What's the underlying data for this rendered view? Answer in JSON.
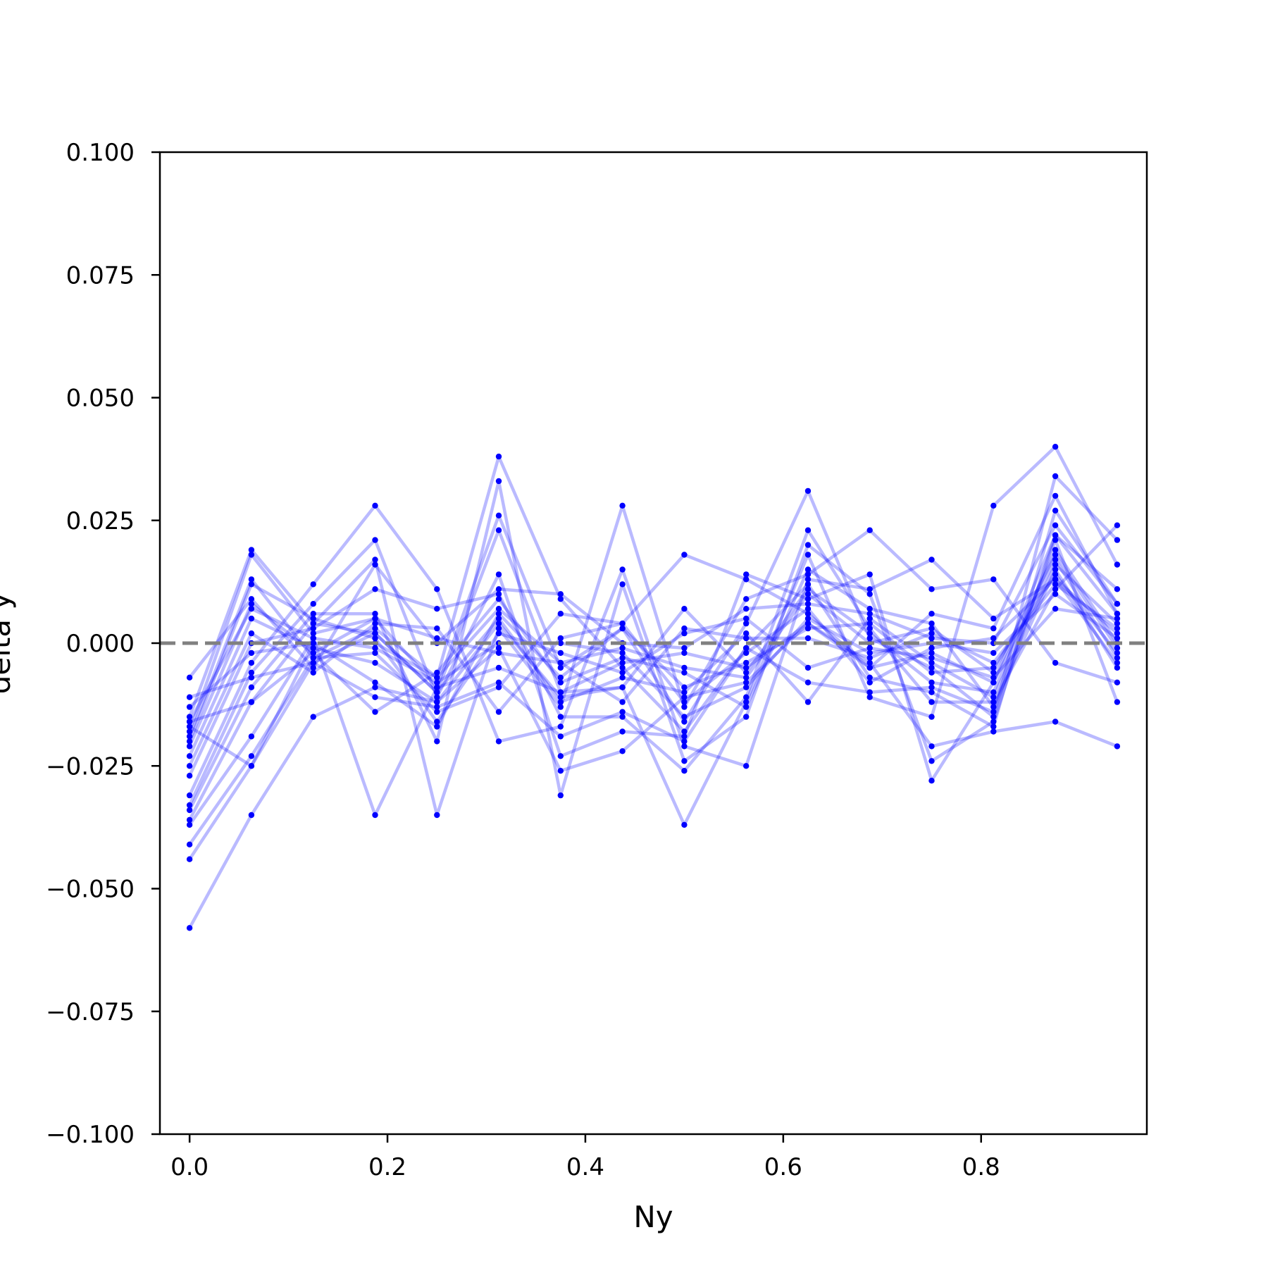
{
  "chart_data": {
    "type": "line",
    "title": "",
    "xlabel": "Ny",
    "ylabel": "delta y",
    "xlim": [
      -0.03,
      0.9675
    ],
    "ylim": [
      -0.1,
      0.1
    ],
    "xticks": [
      0.0,
      0.2,
      0.4,
      0.6,
      0.8
    ],
    "xtick_labels": [
      "0.0",
      "0.2",
      "0.4",
      "0.6",
      "0.8"
    ],
    "yticks": [
      -0.1,
      -0.075,
      -0.05,
      -0.025,
      0.0,
      0.025,
      0.05,
      0.075,
      0.1
    ],
    "ytick_labels": [
      "−0.100",
      "−0.075",
      "−0.050",
      "−0.025",
      "0.000",
      "0.025",
      "0.050",
      "0.075",
      "0.100"
    ],
    "reference_line": {
      "y": 0.0,
      "style": "dashed",
      "color": "#808080"
    },
    "series_color": "#0000ff",
    "grid": false,
    "legend": "none",
    "x": [
      0.0,
      0.0625,
      0.125,
      0.1875,
      0.25,
      0.3125,
      0.375,
      0.4375,
      0.5,
      0.5625,
      0.625,
      0.6875,
      0.75,
      0.8125,
      0.875,
      0.9375
    ],
    "series": [
      {
        "values": [
          -0.058,
          -0.035,
          -0.015,
          -0.009,
          -0.012,
          -0.001,
          -0.026,
          -0.022,
          -0.011,
          -0.008,
          0.004,
          -0.004,
          -0.021,
          -0.018,
          -0.016,
          -0.021
        ]
      },
      {
        "values": [
          -0.044,
          -0.025,
          -0.004,
          0.002,
          -0.01,
          0.023,
          -0.01,
          -0.009,
          -0.037,
          -0.012,
          0.018,
          -0.011,
          -0.015,
          0.028,
          0.04,
          0.016
        ]
      },
      {
        "values": [
          -0.041,
          -0.023,
          -0.003,
          0.003,
          -0.007,
          0.038,
          0.009,
          -0.005,
          -0.018,
          -0.001,
          0.012,
          -0.007,
          -0.01,
          -0.017,
          0.027,
          0.008
        ]
      },
      {
        "values": [
          -0.037,
          -0.019,
          0.001,
          -0.035,
          -0.009,
          0.026,
          -0.005,
          0.003,
          -0.016,
          0.004,
          0.031,
          0.001,
          -0.005,
          -0.015,
          0.034,
          0.021
        ]
      },
      {
        "values": [
          -0.036,
          -0.012,
          0.004,
          0.017,
          -0.035,
          0.003,
          -0.013,
          0.028,
          -0.013,
          0.009,
          0.014,
          0.023,
          0.011,
          0.013,
          -0.004,
          -0.008
        ]
      },
      {
        "values": [
          -0.034,
          -0.009,
          0.006,
          0.006,
          -0.02,
          0.033,
          -0.031,
          0.012,
          -0.024,
          -0.015,
          0.02,
          0.01,
          -0.024,
          -0.016,
          0.022,
          0.011
        ]
      },
      {
        "values": [
          -0.033,
          -0.006,
          0.008,
          0.021,
          -0.011,
          0.014,
          -0.023,
          -0.018,
          -0.019,
          0.014,
          0.009,
          0.014,
          -0.028,
          -0.008,
          0.017,
          -0.003
        ]
      },
      {
        "values": [
          -0.031,
          -0.004,
          0.012,
          0.028,
          0.011,
          -0.02,
          -0.017,
          0.015,
          -0.021,
          -0.025,
          0.013,
          0.011,
          0.017,
          0.005,
          0.013,
          0.002
        ]
      },
      {
        "values": [
          -0.027,
          0.0,
          0.003,
          0.011,
          0.007,
          0.01,
          -0.015,
          -0.015,
          -0.026,
          -0.011,
          0.023,
          0.003,
          -0.012,
          -0.012,
          0.011,
          0.024
        ]
      },
      {
        "values": [
          -0.025,
          0.002,
          -0.006,
          0.004,
          0.003,
          -0.014,
          0.001,
          0.004,
          0.018,
          0.013,
          0.006,
          -0.005,
          0.006,
          0.003,
          0.03,
          0.006
        ]
      },
      {
        "values": [
          -0.023,
          0.005,
          -0.001,
          -0.004,
          -0.012,
          0.004,
          -0.011,
          -0.009,
          0.007,
          -0.006,
          0.011,
          0.002,
          -0.008,
          -0.01,
          0.019,
          0.0
        ]
      },
      {
        "values": [
          -0.021,
          0.008,
          -0.002,
          -0.014,
          -0.006,
          0.009,
          -0.008,
          -0.003,
          -0.006,
          -0.013,
          0.015,
          0.007,
          0.004,
          -0.013,
          0.015,
          -0.005
        ]
      },
      {
        "values": [
          -0.02,
          0.012,
          0.005,
          0.001,
          -0.016,
          0.002,
          -0.002,
          -0.006,
          0.002,
          0.005,
          -0.005,
          -0.001,
          -0.003,
          -0.007,
          0.007,
          0.005
        ]
      },
      {
        "values": [
          -0.019,
          0.013,
          -0.003,
          -0.002,
          -0.014,
          -0.009,
          0.006,
          0.004,
          -0.012,
          -0.002,
          0.007,
          -0.008,
          -0.001,
          0.001,
          0.013,
          -0.004
        ]
      },
      {
        "values": [
          -0.018,
          0.018,
          0.002,
          0.005,
          0.001,
          -0.002,
          -0.004,
          -0.012,
          0.003,
          0.001,
          0.001,
          -0.003,
          0.002,
          -0.004,
          0.012,
          0.003
        ]
      },
      {
        "values": [
          -0.017,
          -0.025,
          0.0,
          -0.008,
          -0.017,
          0.006,
          -0.007,
          0.003,
          -0.009,
          -0.004,
          0.003,
          0.004,
          -0.006,
          -0.005,
          0.014,
          -0.002
        ]
      },
      {
        "values": [
          -0.016,
          0.007,
          0.001,
          -0.001,
          -0.008,
          0.0,
          0.0,
          -0.002,
          -0.015,
          -0.009,
          0.005,
          -0.002,
          0.0,
          -0.002,
          0.01,
          0.001
        ]
      },
      {
        "values": [
          -0.015,
          0.019,
          0.004,
          0.002,
          -0.01,
          0.005,
          -0.012,
          -0.007,
          -0.01,
          0.002,
          -0.012,
          0.005,
          -0.004,
          -0.011,
          0.016,
          0.004
        ]
      },
      {
        "values": [
          -0.013,
          -0.002,
          0.0,
          0.0,
          -0.007,
          0.007,
          -0.004,
          -0.001,
          -0.005,
          -0.007,
          0.01,
          0.0,
          0.003,
          -0.006,
          0.018,
          -0.001
        ]
      },
      {
        "values": [
          -0.011,
          -0.007,
          -0.004,
          -0.011,
          -0.013,
          -0.008,
          -0.019,
          -0.014,
          -0.02,
          -0.001,
          -0.008,
          -0.01,
          -0.009,
          -0.014,
          0.021,
          -0.012
        ]
      },
      {
        "values": [
          -0.007,
          0.009,
          -0.005,
          0.016,
          0.0,
          0.011,
          0.01,
          0.0,
          -0.001,
          0.007,
          0.008,
          0.006,
          0.001,
          0.0,
          0.024,
          0.008
        ]
      },
      {
        "values": [
          -0.016,
          -0.012,
          -0.002,
          0.005,
          -0.009,
          -0.005,
          -0.01,
          -0.004,
          -0.002,
          -0.005,
          0.004,
          -0.005,
          -0.002,
          -0.008,
          0.022,
          0.006
        ]
      }
    ]
  }
}
